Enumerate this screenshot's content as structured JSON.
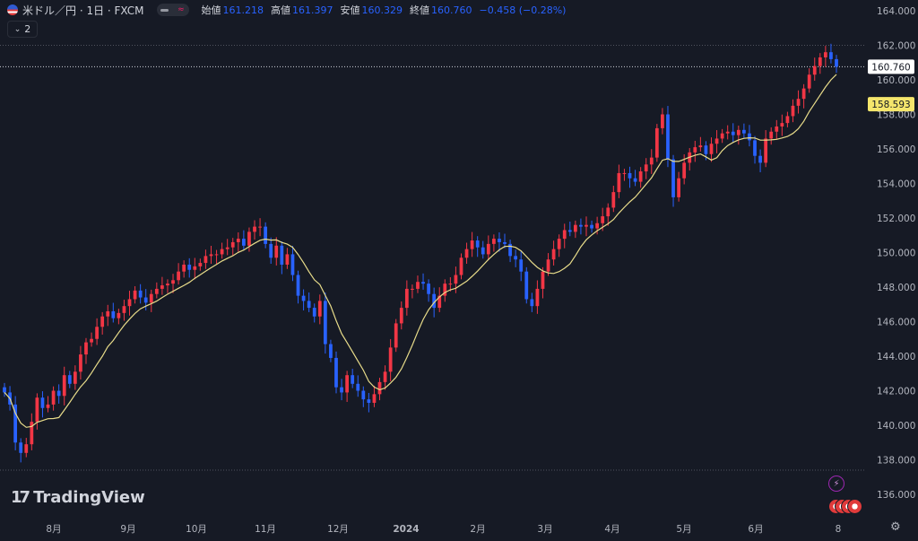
{
  "header": {
    "symbol": "米ドル／円 · 1日 · FXCM",
    "open_label": "始値",
    "open": "161.218",
    "high_label": "高値",
    "high": "161.397",
    "low_label": "安値",
    "low": "160.329",
    "close_label": "終値",
    "close": "160.760",
    "change": "−0.458 (−0.28%)",
    "indicators_count": "2"
  },
  "branding": {
    "logo_text": "TradingView"
  },
  "colors": {
    "background": "#161a25",
    "up": "#f23645",
    "down": "#2962ff",
    "ma": "#e8dc8a",
    "text": "#d1d4dc"
  },
  "chart_data": {
    "type": "candlestick",
    "x_ticks": [
      "8月",
      "9月",
      "10月",
      "11月",
      "12月",
      "2024",
      "2月",
      "3月",
      "4月",
      "5月",
      "6月",
      "8"
    ],
    "y_ticks": [
      "164.000",
      "162.000",
      "160.000",
      "158.000",
      "156.000",
      "154.000",
      "152.000",
      "150.000",
      "148.000",
      "146.000",
      "144.000",
      "142.000",
      "140.000",
      "138.000",
      "136.000"
    ],
    "ylim": [
      135.5,
      164.5
    ],
    "last_price_label": "160.760",
    "ma_label": "158.593",
    "close_series": [
      141.9,
      141.2,
      139.0,
      138.4,
      138.9,
      140.2,
      141.6,
      141.0,
      141.2,
      142.0,
      141.7,
      142.9,
      142.4,
      143.1,
      144.1,
      144.8,
      145.0,
      145.7,
      146.3,
      146.6,
      146.2,
      146.5,
      146.9,
      147.3,
      147.8,
      147.4,
      147.1,
      147.6,
      147.9,
      148.1,
      148.2,
      148.4,
      148.9,
      149.3,
      149.0,
      149.2,
      149.4,
      149.8,
      149.9,
      149.9,
      150.2,
      150.3,
      150.6,
      150.8,
      150.4,
      151.2,
      151.5,
      151.5,
      150.5,
      149.7,
      150.4,
      149.3,
      149.9,
      148.7,
      147.5,
      147.2,
      146.8,
      146.3,
      147.2,
      144.7,
      143.9,
      142.2,
      141.9,
      142.9,
      142.4,
      142.0,
      141.5,
      141.3,
      141.8,
      142.5,
      143.1,
      144.5,
      145.9,
      146.8,
      147.9,
      147.9,
      148.3,
      148.2,
      147.6,
      146.8,
      147.5,
      148.2,
      148.2,
      148.7,
      149.7,
      150.2,
      150.7,
      150.3,
      149.9,
      150.5,
      150.8,
      150.6,
      150.5,
      149.8,
      149.6,
      148.9,
      147.3,
      146.9,
      147.9,
      148.9,
      149.6,
      150.2,
      150.8,
      151.3,
      151.2,
      151.6,
      151.5,
      151.6,
      151.4,
      151.7,
      152.1,
      152.6,
      153.5,
      154.6,
      154.6,
      154.3,
      154.1,
      154.7,
      155.1,
      155.5,
      157.2,
      158.0,
      155.4,
      153.2,
      154.3,
      155.2,
      155.8,
      156.1,
      156.2,
      155.7,
      156.3,
      156.6,
      156.9,
      157.0,
      156.8,
      157.1,
      156.9,
      156.5,
      155.6,
      155.2,
      156.6,
      157.0,
      157.3,
      157.5,
      157.9,
      158.5,
      158.9,
      159.5,
      160.3,
      160.8,
      161.3,
      161.6,
      161.2,
      160.76
    ]
  }
}
